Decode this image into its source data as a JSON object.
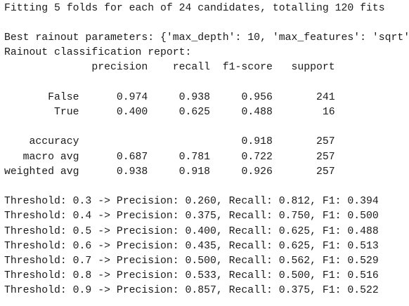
{
  "fit_message": "Fitting 5 folds for each of 24 candidates, totalling 120 fits",
  "best_params": "Best rainout parameters: {'max_depth': 10, 'max_features': 'sqrt'",
  "report_title": "Rainout classification report:",
  "report": {
    "header": [
      "precision",
      "recall",
      "f1-score",
      "support"
    ],
    "rows": [
      {
        "label": "False",
        "precision": "0.974",
        "recall": "0.938",
        "f1": "0.956",
        "support": "241"
      },
      {
        "label": "True",
        "precision": "0.400",
        "recall": "0.625",
        "f1": "0.488",
        "support": "16"
      },
      {
        "label": "accuracy",
        "f1": "0.918",
        "support": "257"
      },
      {
        "label": "macro avg",
        "precision": "0.687",
        "recall": "0.781",
        "f1": "0.722",
        "support": "257"
      },
      {
        "label": "weighted avg",
        "precision": "0.938",
        "recall": "0.918",
        "f1": "0.926",
        "support": "257"
      }
    ]
  },
  "thresholds": [
    "Threshold: 0.3 -> Precision: 0.260, Recall: 0.812, F1: 0.394",
    "Threshold: 0.4 -> Precision: 0.375, Recall: 0.750, F1: 0.500",
    "Threshold: 0.5 -> Precision: 0.400, Recall: 0.625, F1: 0.488",
    "Threshold: 0.6 -> Precision: 0.435, Recall: 0.625, F1: 0.513",
    "Threshold: 0.7 -> Precision: 0.500, Recall: 0.562, F1: 0.529",
    "Threshold: 0.8 -> Precision: 0.533, Recall: 0.500, F1: 0.516",
    "Threshold: 0.9 -> Precision: 0.857, Recall: 0.375, F1: 0.522"
  ]
}
